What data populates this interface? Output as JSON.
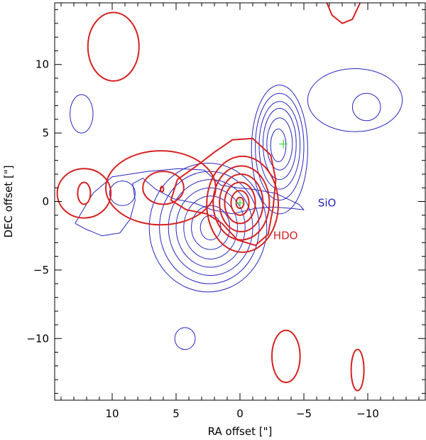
{
  "chart_data": {
    "type": "contour",
    "xlabel": "RA offset [\"]",
    "ylabel": "DEC offset [\"]",
    "xlim": [
      14.5,
      -14.5
    ],
    "ylim": [
      -14.5,
      14.5
    ],
    "xticks": [
      {
        "value": 10,
        "label": "10"
      },
      {
        "value": 5,
        "label": "5"
      },
      {
        "value": 0,
        "label": "0"
      },
      {
        "value": -5,
        "label": "−5"
      },
      {
        "value": -10,
        "label": "−10"
      }
    ],
    "yticks": [
      {
        "value": 10,
        "label": "10"
      },
      {
        "value": 5,
        "label": "5"
      },
      {
        "value": 0,
        "label": "0"
      },
      {
        "value": -5,
        "label": "−5"
      },
      {
        "value": -10,
        "label": "−10"
      }
    ],
    "series": [
      {
        "name": "SiO",
        "color": "#2727c0",
        "stroke": 1,
        "label": {
          "text": "SiO",
          "x": -6.1,
          "y": -0.1
        },
        "rings": [
          {
            "cx": 12.4,
            "cy": 6.4,
            "rx": 0.9,
            "ry": 1.4
          },
          {
            "cx": -9.0,
            "cy": 7.4,
            "rx": 3.7,
            "ry": 2.3
          },
          {
            "cx": -9.9,
            "cy": 6.9,
            "rx": 1.1,
            "ry": 1.0
          },
          {
            "cx": 4.3,
            "cy": -10.0,
            "rx": 0.8,
            "ry": 0.8
          },
          {
            "cx": 9.2,
            "cy": 0.6,
            "rx": 1.0,
            "ry": 0.9
          },
          {
            "cx": 2.5,
            "cy": -1.9,
            "rx": 4.6,
            "ry": 4.7
          },
          {
            "cx": 2.4,
            "cy": -1.9,
            "rx": 3.9,
            "ry": 4.1
          },
          {
            "cx": 2.3,
            "cy": -1.9,
            "rx": 3.3,
            "ry": 3.5
          },
          {
            "cx": 2.3,
            "cy": -1.9,
            "rx": 2.7,
            "ry": 2.9
          },
          {
            "cx": 2.3,
            "cy": -1.9,
            "rx": 2.1,
            "ry": 2.3
          },
          {
            "cx": 2.3,
            "cy": -1.9,
            "rx": 1.5,
            "ry": 1.6
          },
          {
            "cx": 2.3,
            "cy": -1.9,
            "rx": 0.8,
            "ry": 0.9
          },
          {
            "cx": -3.1,
            "cy": 3.8,
            "rx": 2.2,
            "ry": 4.7
          },
          {
            "cx": -3.1,
            "cy": 4.0,
            "rx": 1.9,
            "ry": 3.9
          },
          {
            "cx": -3.1,
            "cy": 4.1,
            "rx": 1.6,
            "ry": 3.2
          },
          {
            "cx": -3.1,
            "cy": 4.2,
            "rx": 1.3,
            "ry": 2.6
          },
          {
            "cx": -3.1,
            "cy": 4.2,
            "rx": 1.0,
            "ry": 1.9
          },
          {
            "cx": -3.0,
            "cy": 4.1,
            "rx": 0.6,
            "ry": 1.2
          }
        ],
        "paths": [
          [
            [
              12.9,
              -1.6
            ],
            [
              11.5,
              0.6
            ],
            [
              10.0,
              1.8
            ],
            [
              7.2,
              2.2
            ],
            [
              4.8,
              2.4
            ],
            [
              2.8,
              2.3
            ],
            [
              1.5,
              1.2
            ],
            [
              0.2,
              1.0
            ],
            [
              -1.0,
              0.9
            ],
            [
              -2.8,
              0.6
            ],
            [
              -4.6,
              -0.2
            ],
            [
              -5.0,
              -0.6
            ],
            [
              -4.0,
              -0.5
            ],
            [
              -2.6,
              -0.4
            ],
            [
              -1.2,
              -0.5
            ],
            [
              0.6,
              -0.9
            ],
            [
              2.2,
              -0.6
            ],
            [
              3.6,
              -0.1
            ],
            [
              5.2,
              0.2
            ],
            [
              6.6,
              0.9
            ],
            [
              7.6,
              1.7
            ],
            [
              8.4,
              1.3
            ],
            [
              8.2,
              0.1
            ],
            [
              8.6,
              -1.3
            ],
            [
              9.4,
              -2.3
            ],
            [
              10.8,
              -2.5
            ],
            [
              12.1,
              -2.0
            ],
            [
              12.9,
              -1.6
            ]
          ]
        ]
      },
      {
        "name": "HDO",
        "color": "#d62222",
        "stroke": 2,
        "label": {
          "text": "HDO",
          "x": -2.6,
          "y": -2.5
        },
        "rings": [
          {
            "cx": 9.9,
            "cy": 11.3,
            "rx": 2.0,
            "ry": 2.5
          },
          {
            "cx": -3.6,
            "cy": -11.3,
            "rx": 1.1,
            "ry": 1.9
          },
          {
            "cx": -9.2,
            "cy": -12.3,
            "rx": 0.5,
            "ry": 1.5
          },
          {
            "cx": 12.2,
            "cy": 0.6,
            "rx": 2.1,
            "ry": 1.8
          },
          {
            "cx": 12.2,
            "cy": 0.6,
            "rx": 0.5,
            "ry": 0.8
          },
          {
            "cx": 6.2,
            "cy": 1.0,
            "rx": 4.3,
            "ry": 2.7
          },
          {
            "cx": 6.0,
            "cy": 1.0,
            "rx": 1.6,
            "ry": 1.2
          },
          {
            "cx": 6.1,
            "cy": 0.9,
            "rx": 0.12,
            "ry": 0.2
          },
          {
            "cx": -0.2,
            "cy": -0.2,
            "rx": 2.8,
            "ry": 3.5
          },
          {
            "cx": -0.1,
            "cy": -0.1,
            "rx": 2.2,
            "ry": 2.7
          },
          {
            "cx": -0.1,
            "cy": -0.1,
            "rx": 1.7,
            "ry": 2.1
          },
          {
            "cx": 0.0,
            "cy": -0.1,
            "rx": 1.2,
            "ry": 1.5
          },
          {
            "cx": 0.0,
            "cy": -0.1,
            "rx": 0.7,
            "ry": 0.9
          },
          {
            "cx": 0.0,
            "cy": -0.1,
            "rx": 0.3,
            "ry": 0.4
          }
        ],
        "paths": [
          [
            [
              -6.8,
              14.5
            ],
            [
              -7.2,
              13.6
            ],
            [
              -8.0,
              13.0
            ],
            [
              -8.8,
              13.3
            ],
            [
              -9.4,
              14.5
            ]
          ],
          [
            [
              4.9,
              1.6
            ],
            [
              3.4,
              2.6
            ],
            [
              2.0,
              3.6
            ],
            [
              0.6,
              4.5
            ],
            [
              -1.0,
              4.6
            ],
            [
              -2.4,
              3.4
            ],
            [
              -2.8,
              1.6
            ],
            [
              -2.6,
              -0.4
            ],
            [
              -2.2,
              -2.4
            ],
            [
              -1.2,
              -3.2
            ],
            [
              0.2,
              -2.8
            ],
            [
              1.4,
              -1.6
            ],
            [
              2.6,
              -0.9
            ],
            [
              4.2,
              -0.6
            ],
            [
              5.4,
              0.1
            ],
            [
              4.9,
              1.6
            ]
          ]
        ]
      }
    ],
    "markers": [
      {
        "x": 0.0,
        "y": -0.1,
        "color": "#33dd33"
      },
      {
        "x": -3.4,
        "y": 4.2,
        "color": "#33dd33"
      }
    ]
  }
}
